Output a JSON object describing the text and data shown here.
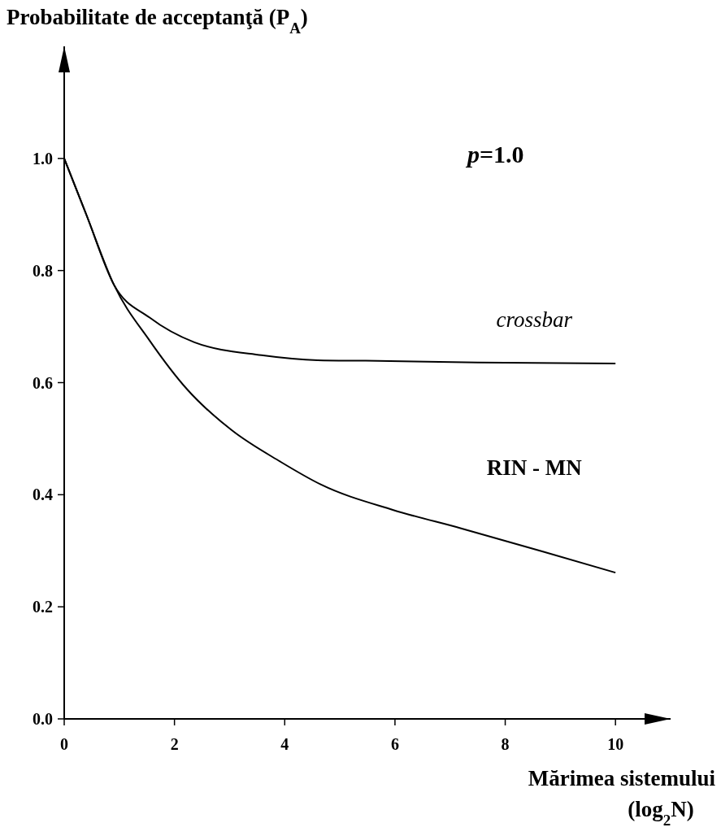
{
  "chart_data": {
    "type": "line",
    "ylabel": "Probabilitate de acceptanţă (P$_{A}$)",
    "xlabel": "Mărimea sistemului\n(log$_{2}$N)",
    "annotations": [
      "p=1.0"
    ],
    "xlim": [
      0,
      11
    ],
    "xticks": [
      0,
      2,
      4,
      6,
      8,
      10
    ],
    "ylim": [
      0,
      1.2
    ],
    "yticks": [
      {
        "value": 0,
        "label": "0.0"
      },
      {
        "value": 0.2,
        "label": "0.2"
      },
      {
        "value": 0.4,
        "label": "0.4"
      },
      {
        "value": 0.6,
        "label": "0.6"
      },
      {
        "value": 0.8,
        "label": "0.8"
      },
      {
        "value": 1,
        "label": "1.0"
      }
    ],
    "grid": false,
    "marker": "none",
    "line_style": "solid",
    "series": [
      {
        "name": "crossbar",
        "color": "#000000",
        "x": [
          0,
          0.4,
          0.9,
          1.55,
          2.36,
          3.58,
          4.6,
          5.47,
          7.5,
          10
        ],
        "values": [
          1.0,
          0.9,
          0.775,
          0.716,
          0.672,
          0.649,
          0.64,
          0.639,
          0.636,
          0.634
        ]
      },
      {
        "name": "RIN - MN",
        "color": "#000000",
        "x": [
          0,
          0.4,
          0.9,
          1.55,
          2.23,
          3.04,
          3.92,
          4.66,
          5.96,
          7.2,
          8.67,
          10
        ],
        "values": [
          1.0,
          0.9,
          0.775,
          0.675,
          0.588,
          0.515,
          0.459,
          0.418,
          0.373,
          0.34,
          0.299,
          0.261
        ]
      }
    ]
  }
}
